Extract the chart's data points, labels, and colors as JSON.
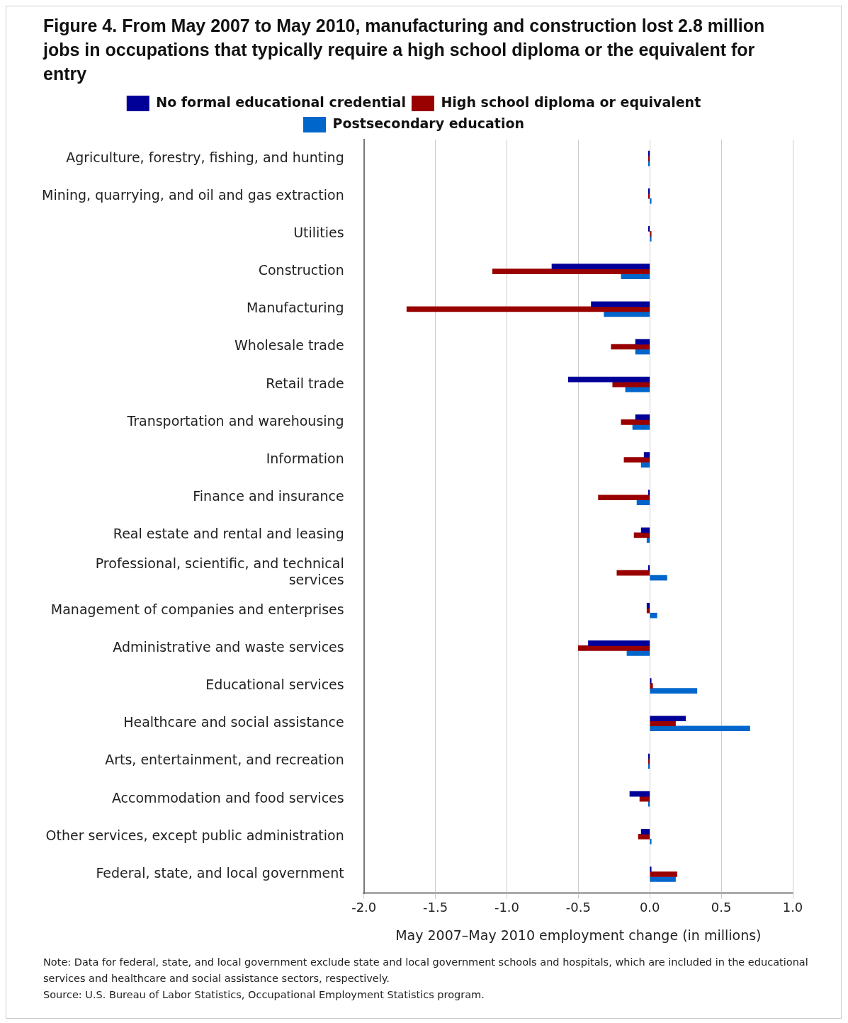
{
  "chart_data": {
    "type": "bar",
    "orientation": "horizontal",
    "title": "Figure 4. From May 2007 to May 2010, manufacturing and construction lost 2.8 million jobs in occupations that typically require a high school diploma or the equivalent for entry",
    "xlabel": "May 2007–May 2010 employment change (in millions)",
    "categories": [
      "Agriculture, forestry, fishing, and hunting",
      "Mining, quarrying, and oil and gas extraction",
      "Utilities",
      "Construction",
      "Manufacturing",
      "Wholesale trade",
      "Retail trade",
      "Transportation and warehousing",
      "Information",
      "Finance and insurance",
      "Real estate and rental and leasing",
      "Professional, scientific, and technical services",
      "Management of companies and enterprises",
      "Administrative and waste services",
      "Educational services",
      "Healthcare and social assistance",
      "Arts, entertainment, and recreation",
      "Accommodation and food services",
      "Other services, except public administration",
      "Federal, state, and local government"
    ],
    "series": [
      {
        "name": "No formal educational credential",
        "color": "#000099",
        "values": [
          -0.01,
          -0.01,
          -0.01,
          -0.685,
          -0.41,
          -0.1,
          -0.57,
          -0.1,
          -0.04,
          -0.01,
          -0.06,
          -0.01,
          -0.02,
          -0.43,
          0.01,
          0.25,
          -0.01,
          -0.14,
          -0.06,
          0.01
        ]
      },
      {
        "name": "High school diploma or equivalent",
        "color": "#990000",
        "values": [
          -0.01,
          -0.01,
          0.01,
          -1.1,
          -1.7,
          -0.27,
          -0.26,
          -0.2,
          -0.18,
          -0.36,
          -0.11,
          -0.23,
          -0.02,
          -0.5,
          0.02,
          0.18,
          -0.01,
          -0.07,
          -0.08,
          0.19
        ]
      },
      {
        "name": "Postsecondary education",
        "color": "#0066cc",
        "values": [
          -0.01,
          0.01,
          0.01,
          -0.2,
          -0.32,
          -0.1,
          -0.17,
          -0.12,
          -0.06,
          -0.09,
          -0.02,
          0.12,
          0.05,
          -0.16,
          0.33,
          0.7,
          -0.01,
          -0.01,
          0.01,
          0.18
        ]
      }
    ],
    "xlim": [
      -2.0,
      1.0
    ],
    "xticks": [
      {
        "value": -2,
        "label": "-2.0"
      },
      {
        "value": -1.5,
        "label": "-1.5"
      },
      {
        "value": -1,
        "label": "-1.0"
      },
      {
        "value": -0.5,
        "label": "-0.5"
      },
      {
        "value": 0,
        "label": "0.0"
      },
      {
        "value": 0.5,
        "label": "0.5"
      },
      {
        "value": 1,
        "label": "1.0"
      }
    ],
    "grid": "x",
    "legend": "top",
    "annotations": [
      "Note: Data for federal, state, and local government exclude state and local government schools and hospitals, which are included in the educational services and healthcare and social assistance sectors, respectively.",
      "Source: U.S. Bureau of Labor Statistics, Occupational Employment Statistics program."
    ]
  }
}
